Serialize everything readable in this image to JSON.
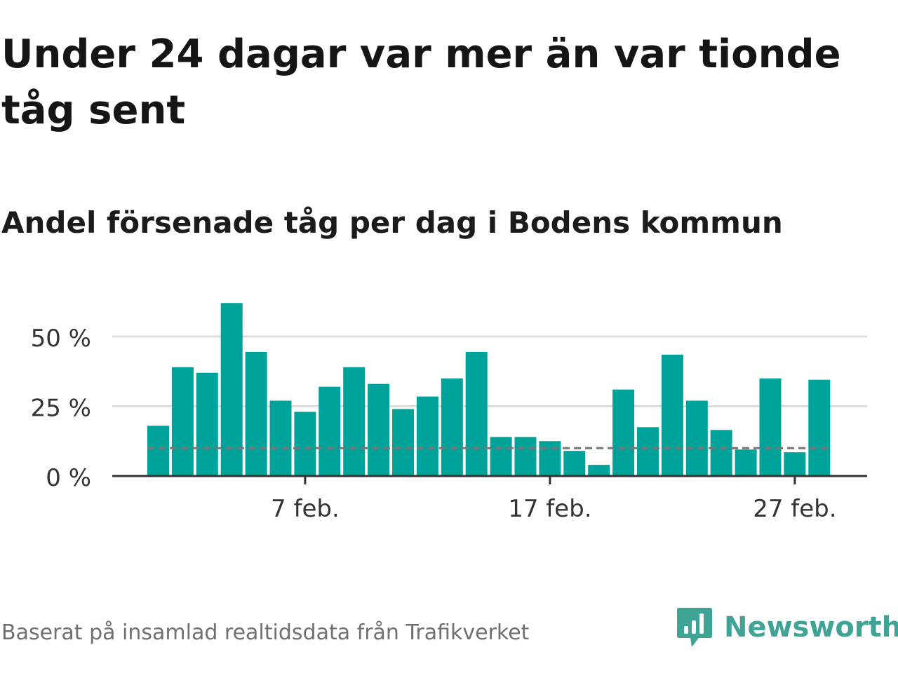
{
  "title": "Under 24 dagar var mer än var tionde tåg sent",
  "subtitle": "Andel försenade tåg per dag i Bodens kommun",
  "source": "Baserat på insamlad realtidsdata från Trafikverket",
  "brand": {
    "name": "Newsworthy",
    "logo_icon": "newsworthy-bar-chart-bubble-icon",
    "color": "#3fa396"
  },
  "colors": {
    "bar": "#00a39a",
    "reference_line": "#777777",
    "grid": "#dddddd",
    "axis": "#333333"
  },
  "chart_data": {
    "type": "bar",
    "x": [
      "1 feb.",
      "2 feb.",
      "3 feb.",
      "4 feb.",
      "5 feb.",
      "6 feb.",
      "7 feb.",
      "8 feb.",
      "9 feb.",
      "10 feb.",
      "11 feb.",
      "12 feb.",
      "13 feb.",
      "14 feb.",
      "15 feb.",
      "16 feb.",
      "17 feb.",
      "18 feb.",
      "19 feb.",
      "20 feb.",
      "21 feb.",
      "22 feb.",
      "23 feb.",
      "24 feb.",
      "25 feb.",
      "26 feb.",
      "27 feb.",
      "28 feb."
    ],
    "values": [
      18,
      39,
      37,
      62,
      44.5,
      27,
      23,
      32,
      39,
      33,
      24,
      28.5,
      35,
      44.5,
      14,
      14,
      12.5,
      9,
      4,
      31,
      17.5,
      43.5,
      27,
      16.5,
      9.5,
      35,
      8.5,
      34.5
    ],
    "reference_line": 10,
    "ylim": [
      0,
      62
    ],
    "yticks": [
      0,
      25,
      50
    ],
    "ytick_labels": [
      "0 %",
      "25 %",
      "50 %"
    ],
    "xticks": [
      "7 feb.",
      "17 feb.",
      "27 feb."
    ],
    "xlabel": "",
    "ylabel": "",
    "grid": true,
    "legend": false
  }
}
